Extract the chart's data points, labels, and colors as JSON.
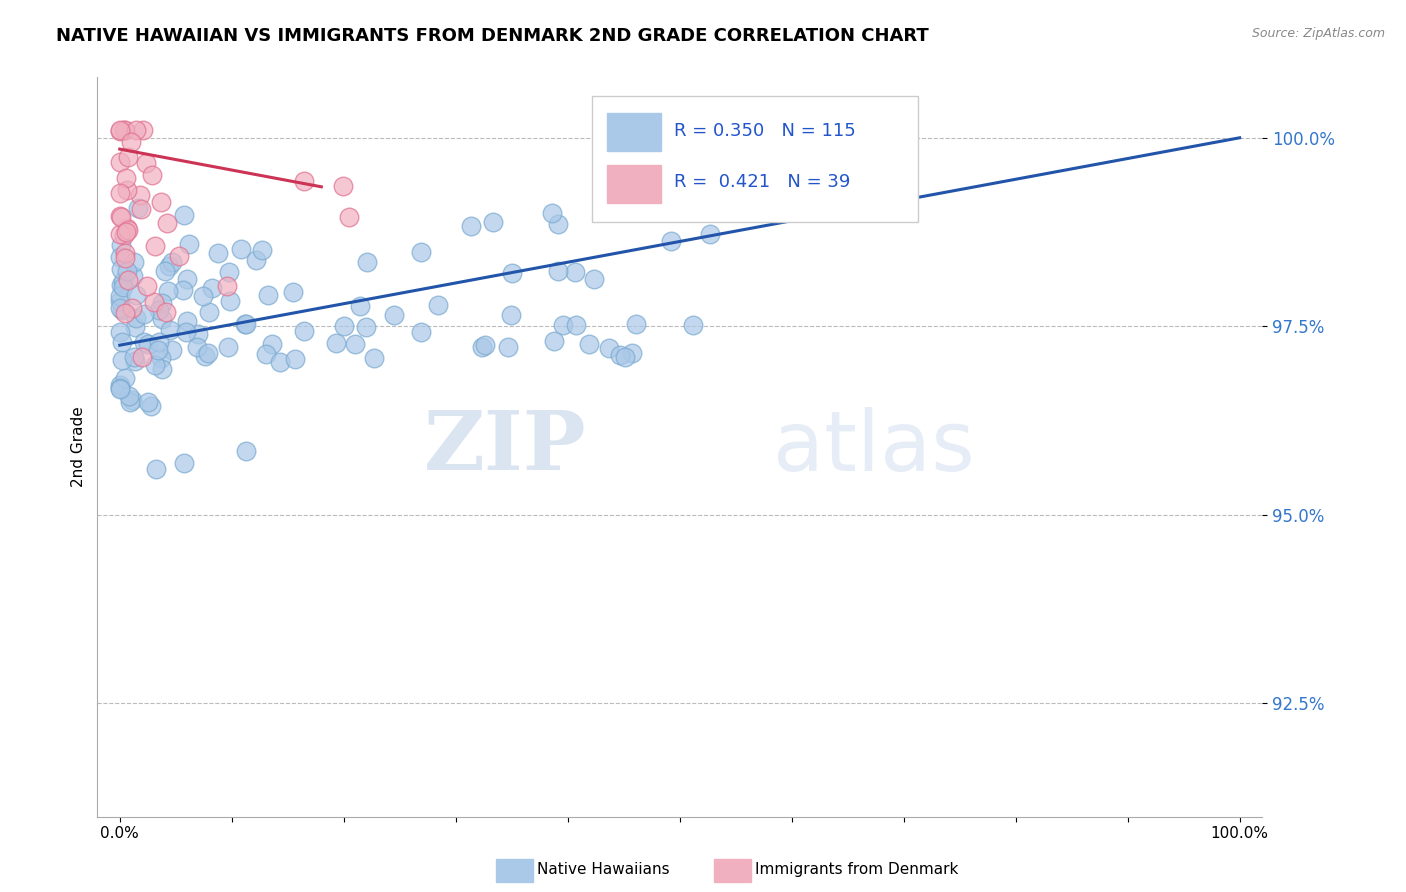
{
  "title": "NATIVE HAWAIIAN VS IMMIGRANTS FROM DENMARK 2ND GRADE CORRELATION CHART",
  "source_text": "Source: ZipAtlas.com",
  "ylabel": "2nd Grade",
  "xlim": [
    -0.02,
    1.02
  ],
  "ylim": [
    0.91,
    1.008
  ],
  "yticks": [
    0.925,
    0.95,
    0.975,
    1.0
  ],
  "ytick_labels": [
    "92.5%",
    "95.0%",
    "97.5%",
    "100.0%"
  ],
  "xtick_labels_left": "0.0%",
  "xtick_labels_right": "100.0%",
  "blue_R": 0.35,
  "blue_N": 115,
  "pink_R": 0.421,
  "pink_N": 39,
  "blue_color": "#aac8e8",
  "blue_edge_color": "#7aaad0",
  "pink_color": "#f0b0c0",
  "pink_edge_color": "#e07090",
  "blue_line_color": "#2255aa",
  "pink_line_color": "#cc3355",
  "legend_label_blue": "Native Hawaiians",
  "legend_label_pink": "Immigrants from Denmark",
  "watermark_zip": "ZIP",
  "watermark_atlas": "atlas",
  "blue_line_x0": 0.0,
  "blue_line_x1": 1.0,
  "blue_line_y0": 0.9725,
  "blue_line_y1": 1.0,
  "pink_line_x0": 0.0,
  "pink_line_x1": 0.18,
  "pink_line_y0": 0.9985,
  "pink_line_y1": 0.9935
}
